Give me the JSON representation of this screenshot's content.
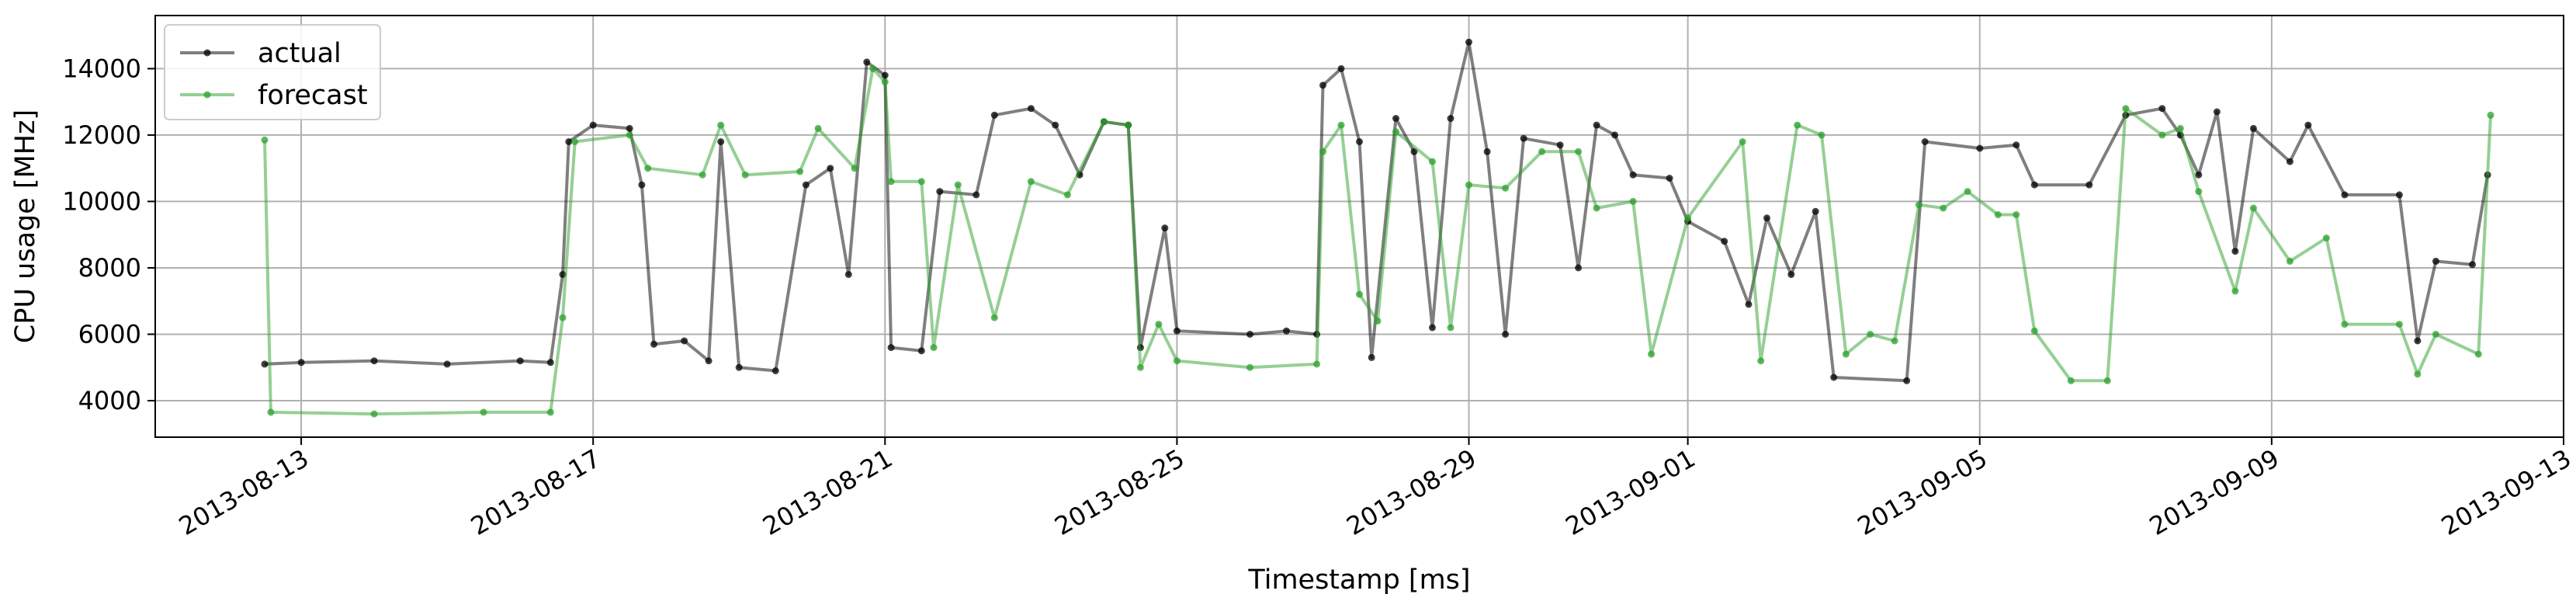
{
  "chart_data": {
    "type": "line",
    "title": "",
    "xlabel": "Timestamp [ms]",
    "ylabel": "CPU usage [MHz]",
    "xlim": [
      "2013-08-11",
      "2013-09-13"
    ],
    "ylim": [
      2900,
      15600
    ],
    "x_ticks": [
      "2013-08-13",
      "2013-08-17",
      "2013-08-21",
      "2013-08-25",
      "2013-08-29",
      "2013-09-01",
      "2013-09-05",
      "2013-09-09",
      "2013-09-13"
    ],
    "y_ticks": [
      4000,
      6000,
      8000,
      10000,
      12000,
      14000
    ],
    "grid": true,
    "legend": {
      "placement": "top-left"
    },
    "series": [
      {
        "name": "actual",
        "color": "#000000",
        "style": "line with point markers, semi-transparent",
        "points": [
          [
            "2013-08-12 12:00",
            5100
          ],
          [
            "2013-08-13 00:00",
            5150
          ],
          [
            "2013-08-14 00:00",
            5200
          ],
          [
            "2013-08-15 00:00",
            5100
          ],
          [
            "2013-08-16 00:00",
            5200
          ],
          [
            "2013-08-16 10:00",
            5150
          ],
          [
            "2013-08-16 14:00",
            7800
          ],
          [
            "2013-08-16 16:00",
            11800
          ],
          [
            "2013-08-17 00:00",
            12300
          ],
          [
            "2013-08-17 12:00",
            12200
          ],
          [
            "2013-08-17 16:00",
            10500
          ],
          [
            "2013-08-17 20:00",
            5700
          ],
          [
            "2013-08-18 06:00",
            5800
          ],
          [
            "2013-08-18 14:00",
            5200
          ],
          [
            "2013-08-18 18:00",
            11800
          ],
          [
            "2013-08-19 00:00",
            5000
          ],
          [
            "2013-08-19 12:00",
            4900
          ],
          [
            "2013-08-19 22:00",
            10500
          ],
          [
            "2013-08-20 06:00",
            11000
          ],
          [
            "2013-08-20 12:00",
            7800
          ],
          [
            "2013-08-20 18:00",
            14200
          ],
          [
            "2013-08-21 00:00",
            13800
          ],
          [
            "2013-08-21 02:00",
            5600
          ],
          [
            "2013-08-21 12:00",
            5500
          ],
          [
            "2013-08-21 18:00",
            10300
          ],
          [
            "2013-08-22 06:00",
            10200
          ],
          [
            "2013-08-22 12:00",
            12600
          ],
          [
            "2013-08-23 00:00",
            12800
          ],
          [
            "2013-08-23 08:00",
            12300
          ],
          [
            "2013-08-23 16:00",
            10800
          ],
          [
            "2013-08-24 00:00",
            12400
          ],
          [
            "2013-08-24 08:00",
            12300
          ],
          [
            "2013-08-24 12:00",
            5600
          ],
          [
            "2013-08-24 20:00",
            9200
          ],
          [
            "2013-08-25 00:00",
            6100
          ],
          [
            "2013-08-26 00:00",
            6000
          ],
          [
            "2013-08-26 12:00",
            6100
          ],
          [
            "2013-08-26 22:00",
            6000
          ],
          [
            "2013-08-27 00:00",
            13500
          ],
          [
            "2013-08-27 06:00",
            14000
          ],
          [
            "2013-08-27 12:00",
            11800
          ],
          [
            "2013-08-27 16:00",
            5300
          ],
          [
            "2013-08-28 00:00",
            12500
          ],
          [
            "2013-08-28 06:00",
            11500
          ],
          [
            "2013-08-28 12:00",
            6200
          ],
          [
            "2013-08-28 18:00",
            12500
          ],
          [
            "2013-08-29 00:00",
            14800
          ],
          [
            "2013-08-29 06:00",
            11500
          ],
          [
            "2013-08-29 12:00",
            6000
          ],
          [
            "2013-08-29 18:00",
            11900
          ],
          [
            "2013-08-30 06:00",
            11700
          ],
          [
            "2013-08-30 12:00",
            8000
          ],
          [
            "2013-08-30 18:00",
            12300
          ],
          [
            "2013-08-31 00:00",
            12000
          ],
          [
            "2013-08-31 06:00",
            10800
          ],
          [
            "2013-08-31 18:00",
            10700
          ],
          [
            "2013-09-01 00:00",
            9400
          ],
          [
            "2013-09-01 12:00",
            8800
          ],
          [
            "2013-09-01 20:00",
            6900
          ],
          [
            "2013-09-02 02:00",
            9500
          ],
          [
            "2013-09-02 10:00",
            7800
          ],
          [
            "2013-09-02 18:00",
            9700
          ],
          [
            "2013-09-03 00:00",
            4700
          ],
          [
            "2013-09-04 00:00",
            4600
          ],
          [
            "2013-09-04 06:00",
            11800
          ],
          [
            "2013-09-05 00:00",
            11600
          ],
          [
            "2013-09-05 12:00",
            11700
          ],
          [
            "2013-09-05 18:00",
            10500
          ],
          [
            "2013-09-06 12:00",
            10500
          ],
          [
            "2013-09-07 00:00",
            12600
          ],
          [
            "2013-09-07 12:00",
            12800
          ],
          [
            "2013-09-07 18:00",
            12000
          ],
          [
            "2013-09-08 00:00",
            10800
          ],
          [
            "2013-09-08 06:00",
            12700
          ],
          [
            "2013-09-08 12:00",
            8500
          ],
          [
            "2013-09-08 18:00",
            12200
          ],
          [
            "2013-09-09 06:00",
            11200
          ],
          [
            "2013-09-09 12:00",
            12300
          ],
          [
            "2013-09-10 00:00",
            10200
          ],
          [
            "2013-09-10 18:00",
            10200
          ],
          [
            "2013-09-11 00:00",
            5800
          ],
          [
            "2013-09-11 06:00",
            8200
          ],
          [
            "2013-09-11 18:00",
            8100
          ],
          [
            "2013-09-11 23:00",
            10800
          ]
        ]
      },
      {
        "name": "forecast",
        "color": "#2ca02c",
        "style": "line with point markers, semi-transparent",
        "points": [
          [
            "2013-08-12 12:00",
            11850
          ],
          [
            "2013-08-12 14:00",
            3650
          ],
          [
            "2013-08-14 00:00",
            3600
          ],
          [
            "2013-08-15 12:00",
            3650
          ],
          [
            "2013-08-16 10:00",
            3650
          ],
          [
            "2013-08-16 14:00",
            6500
          ],
          [
            "2013-08-16 18:00",
            11800
          ],
          [
            "2013-08-17 12:00",
            12000
          ],
          [
            "2013-08-17 18:00",
            11000
          ],
          [
            "2013-08-18 12:00",
            10800
          ],
          [
            "2013-08-18 18:00",
            12300
          ],
          [
            "2013-08-19 02:00",
            10800
          ],
          [
            "2013-08-19 20:00",
            10900
          ],
          [
            "2013-08-20 02:00",
            12200
          ],
          [
            "2013-08-20 14:00",
            11000
          ],
          [
            "2013-08-20 20:00",
            14000
          ],
          [
            "2013-08-21 00:00",
            13600
          ],
          [
            "2013-08-21 02:00",
            10600
          ],
          [
            "2013-08-21 12:00",
            10600
          ],
          [
            "2013-08-21 16:00",
            5600
          ],
          [
            "2013-08-22 00:00",
            10500
          ],
          [
            "2013-08-22 12:00",
            6500
          ],
          [
            "2013-08-23 00:00",
            10600
          ],
          [
            "2013-08-23 12:00",
            10200
          ],
          [
            "2013-08-24 00:00",
            12400
          ],
          [
            "2013-08-24 08:00",
            12300
          ],
          [
            "2013-08-24 12:00",
            5000
          ],
          [
            "2013-08-24 18:00",
            6300
          ],
          [
            "2013-08-25 00:00",
            5200
          ],
          [
            "2013-08-26 00:00",
            5000
          ],
          [
            "2013-08-26 22:00",
            5100
          ],
          [
            "2013-08-27 00:00",
            11500
          ],
          [
            "2013-08-27 06:00",
            12300
          ],
          [
            "2013-08-27 12:00",
            7200
          ],
          [
            "2013-08-27 18:00",
            6400
          ],
          [
            "2013-08-28 00:00",
            12100
          ],
          [
            "2013-08-28 12:00",
            11200
          ],
          [
            "2013-08-28 18:00",
            6200
          ],
          [
            "2013-08-29 00:00",
            10500
          ],
          [
            "2013-08-29 12:00",
            10400
          ],
          [
            "2013-08-30 00:00",
            11500
          ],
          [
            "2013-08-30 12:00",
            11500
          ],
          [
            "2013-08-30 18:00",
            9800
          ],
          [
            "2013-08-31 06:00",
            10000
          ],
          [
            "2013-08-31 12:00",
            5400
          ],
          [
            "2013-09-01 00:00",
            9500
          ],
          [
            "2013-09-01 18:00",
            11800
          ],
          [
            "2013-09-02 00:00",
            5200
          ],
          [
            "2013-09-02 12:00",
            12300
          ],
          [
            "2013-09-02 20:00",
            12000
          ],
          [
            "2013-09-03 04:00",
            5400
          ],
          [
            "2013-09-03 12:00",
            6000
          ],
          [
            "2013-09-03 20:00",
            5800
          ],
          [
            "2013-09-04 04:00",
            9900
          ],
          [
            "2013-09-04 12:00",
            9800
          ],
          [
            "2013-09-04 20:00",
            10300
          ],
          [
            "2013-09-05 06:00",
            9600
          ],
          [
            "2013-09-05 12:00",
            9600
          ],
          [
            "2013-09-05 18:00",
            6100
          ],
          [
            "2013-09-06 06:00",
            4600
          ],
          [
            "2013-09-06 18:00",
            4600
          ],
          [
            "2013-09-07 00:00",
            12800
          ],
          [
            "2013-09-07 12:00",
            12000
          ],
          [
            "2013-09-07 18:00",
            12200
          ],
          [
            "2013-09-08 00:00",
            10300
          ],
          [
            "2013-09-08 12:00",
            7300
          ],
          [
            "2013-09-08 18:00",
            9800
          ],
          [
            "2013-09-09 06:00",
            8200
          ],
          [
            "2013-09-09 18:00",
            8900
          ],
          [
            "2013-09-10 00:00",
            6300
          ],
          [
            "2013-09-10 18:00",
            6300
          ],
          [
            "2013-09-11 00:00",
            4800
          ],
          [
            "2013-09-11 06:00",
            6000
          ],
          [
            "2013-09-11 20:00",
            5400
          ],
          [
            "2013-09-12 00:00",
            12600
          ]
        ]
      }
    ]
  }
}
